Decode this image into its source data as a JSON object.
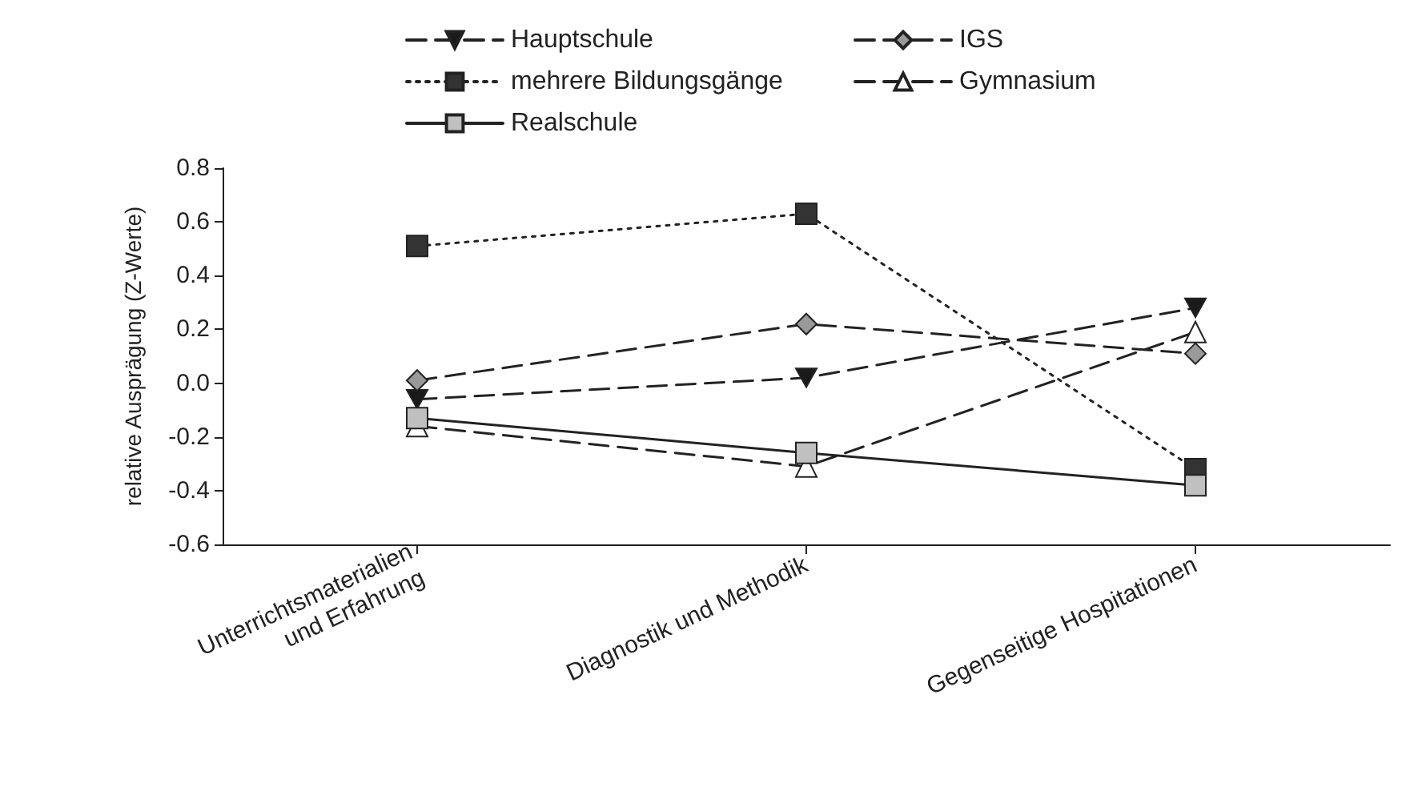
{
  "chart_data": {
    "type": "line",
    "ylabel": "relative Ausprägung (Z-Werte)",
    "categories": [
      "Unterrichtsmaterialien\nund Erfahrung",
      "Diagnostik und Methodik",
      "Gegenseitige Hospitationen"
    ],
    "series": [
      {
        "name": "Hauptschule",
        "color": "#1a1a1a",
        "marker": "triangle_down",
        "line_style": "dashed",
        "values": [
          -0.06,
          0.02,
          0.28
        ]
      },
      {
        "name": "IGS",
        "color": "#999999",
        "marker": "diamond",
        "line_style": "dashed",
        "values": [
          0.01,
          0.22,
          0.11
        ]
      },
      {
        "name": "mehrere Bildungsgänge",
        "color": "#333333",
        "marker": "square",
        "line_style": "dotted",
        "values": [
          0.51,
          0.63,
          -0.32
        ]
      },
      {
        "name": "Gymnasium",
        "color": "#ffffff",
        "marker": "triangle",
        "line_style": "dashed",
        "values": [
          -0.16,
          -0.31,
          0.19
        ]
      },
      {
        "name": "Realschule",
        "color": "#c0c0c0",
        "marker": "square",
        "line_style": "solid",
        "values": [
          -0.13,
          -0.26,
          -0.38
        ]
      }
    ],
    "ylim": [
      -0.6,
      0.8
    ],
    "yticks": [
      -0.6,
      -0.4,
      -0.2,
      {
        "value": 0,
        "label": "0.0"
      },
      0.2,
      0.4,
      0.6,
      0.8
    ],
    "grid": false,
    "legend": "top left"
  }
}
